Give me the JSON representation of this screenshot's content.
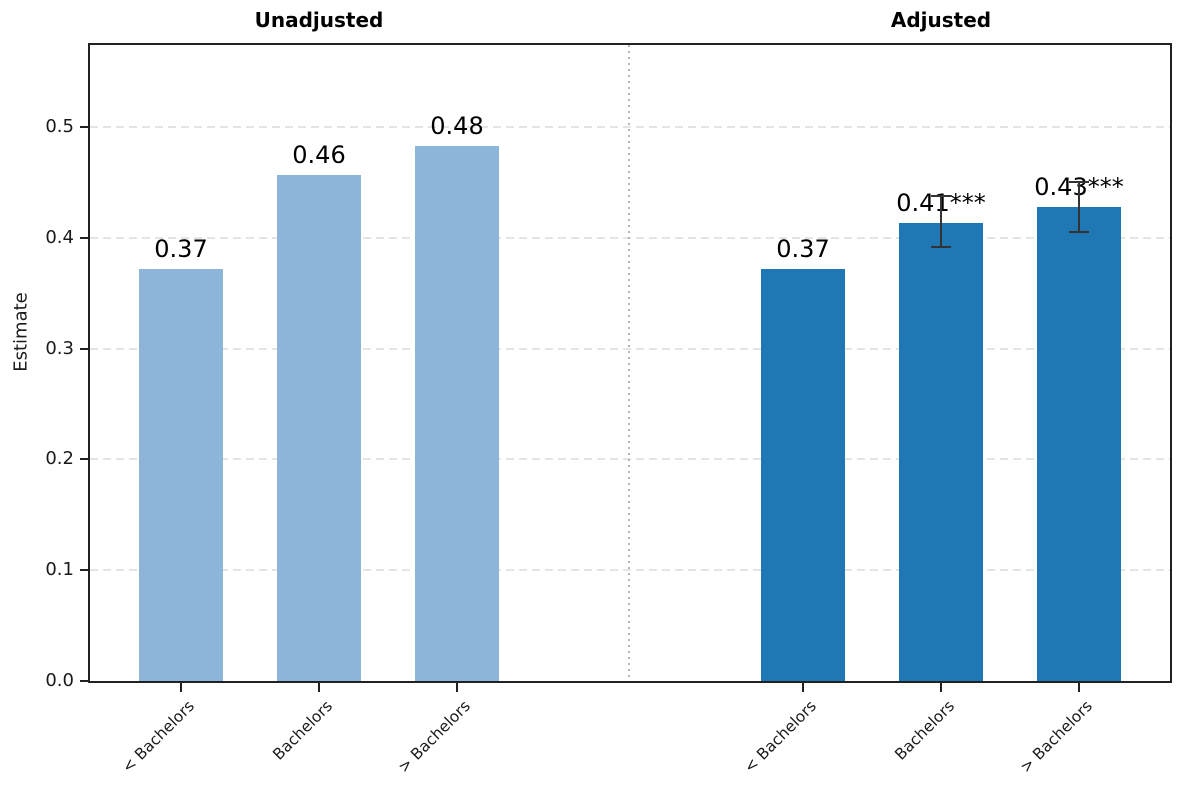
{
  "chart_data": {
    "type": "bar",
    "ylabel": "Estimate",
    "ylim": [
      0,
      0.574
    ],
    "yticks": [
      0,
      0.1,
      0.2,
      0.3,
      0.4,
      0.5
    ],
    "ytick_labels": [
      "0.0",
      "0.1",
      "0.2",
      "0.3",
      "0.4",
      "0.5"
    ],
    "grid": "horizontal dashed lines at y ticks",
    "panel_divider": "vertical dotted line between panels",
    "legend_position": "none",
    "categories": [
      "< Bachelors",
      "Bachelors",
      "> Bachelors"
    ],
    "panels": [
      {
        "title": "Unadjusted",
        "bar_color": "#8db4d9",
        "values": [
          0.372,
          0.457,
          0.483
        ],
        "value_labels": [
          "0.37",
          "0.46",
          "0.48"
        ],
        "error_bars": [
          null,
          null,
          null
        ]
      },
      {
        "title": "Adjusted",
        "bar_color": "#1f77b4",
        "values": [
          0.372,
          0.413,
          0.428
        ],
        "value_labels": [
          "0.37",
          "0.41***",
          "0.43***"
        ],
        "error_bars": [
          null,
          [
            0.392,
            0.438
          ],
          [
            0.405,
            0.45
          ]
        ]
      }
    ],
    "colors": {
      "spine": "#212121",
      "grid": "#e4e4e4",
      "divider": "#b5b5b5",
      "error_bar": "#333333",
      "text": "#000000"
    }
  }
}
